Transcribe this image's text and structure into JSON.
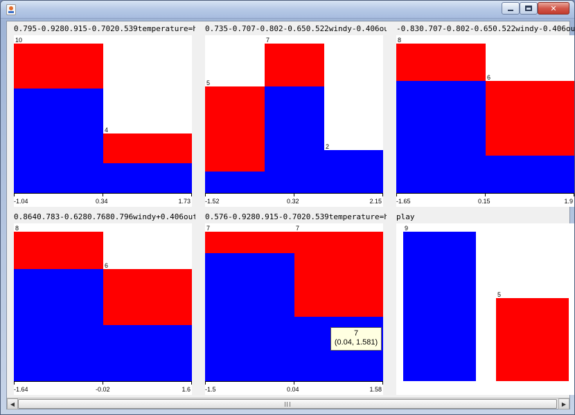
{
  "window": {
    "title": "",
    "buttons": {
      "minimize": "minimize-icon",
      "maximize": "maximize-icon",
      "close": "close-icon"
    },
    "close_glyph": "✕"
  },
  "colors": {
    "series_a": "#0000ff",
    "series_b": "#ff0000",
    "plot_bg": "#ffffff"
  },
  "panels": [
    {
      "title": "0.795-0.9280.915-0.7020.539temperature=h...",
      "ticks": [
        "-1.04",
        "0.34",
        "1.73"
      ],
      "bins": [
        {
          "total": 10,
          "blue_fraction": 0.7,
          "label": "10"
        },
        {
          "total": 4,
          "blue_fraction": 0.5,
          "label": "4"
        }
      ]
    },
    {
      "title": "0.735-0.707-0.802-0.650.522windy-0.406ou...",
      "ticks": [
        "-1.52",
        "0.32",
        "2.15"
      ],
      "bins": [
        {
          "total": 5,
          "blue_fraction": 0.2,
          "label": "5"
        },
        {
          "total": 7,
          "blue_fraction": 0.714,
          "label": "7"
        },
        {
          "total": 2,
          "blue_fraction": 1,
          "label": "2"
        }
      ]
    },
    {
      "title": "-0.830.707-0.802-0.650.522windy-0.406out...",
      "ticks": [
        "-1.65",
        "0.15",
        "1.9"
      ],
      "bins": [
        {
          "total": 8,
          "blue_fraction": 0.75,
          "label": "8"
        },
        {
          "total": 6,
          "blue_fraction": 0.333,
          "label": "6"
        }
      ]
    },
    {
      "title": "0.8640.783-0.6280.7680.796windy+0.406out...",
      "ticks": [
        "-1.64",
        "-0.02",
        "1.6"
      ],
      "bins": [
        {
          "total": 8,
          "blue_fraction": 0.75,
          "label": "8"
        },
        {
          "total": 6,
          "blue_fraction": 0.5,
          "label": "6"
        }
      ]
    },
    {
      "title": "0.576-0.9280.915-0.7020.539temperature=h...",
      "ticks": [
        "-1.5",
        "0.04",
        "1.58"
      ],
      "bins": [
        {
          "total": 7,
          "blue_fraction": 0.857,
          "label": "7"
        },
        {
          "total": 7,
          "blue_fraction": 0.429,
          "label": "7"
        }
      ],
      "tooltip": {
        "line1": "7",
        "line2": "(0.04, 1.581)"
      }
    },
    {
      "title": "play",
      "ticks": [],
      "bins": [
        {
          "total": 9,
          "blue_fraction": 1,
          "label": "9"
        },
        {
          "total": 5,
          "blue_fraction": 0,
          "label": "5"
        }
      ],
      "separate_bars": true
    }
  ],
  "scrollbar": {
    "left_arrow": "◀",
    "right_arrow": "▶"
  }
}
